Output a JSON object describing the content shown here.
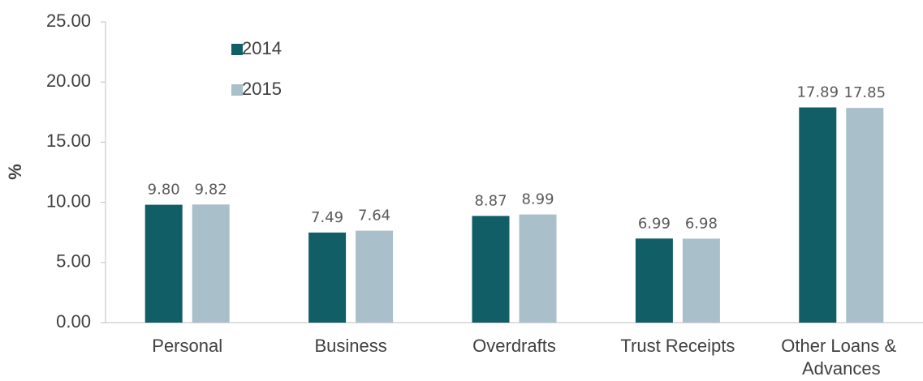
{
  "chart_data": {
    "type": "bar",
    "ylabel": "%",
    "categories": [
      "Personal",
      "Business",
      "Overdrafts",
      "Trust Receipts",
      "Other Loans & Advances"
    ],
    "series": [
      {
        "name": "2014",
        "color": "#115e67",
        "values": [
          9.8,
          7.49,
          8.87,
          6.99,
          17.89
        ],
        "value_labels": [
          "9.80",
          "7.49",
          "8.87",
          "6.99",
          "17.89"
        ]
      },
      {
        "name": "2015",
        "color": "#a9bfc9",
        "values": [
          9.82,
          7.64,
          8.99,
          6.98,
          17.85
        ],
        "value_labels": [
          "9.82",
          "7.64",
          "8.99",
          "6.98",
          "17.85"
        ]
      }
    ],
    "ylim": [
      0,
      25
    ],
    "yticks": [
      {
        "value": 0,
        "label": "0.00"
      },
      {
        "value": 5,
        "label": "5.00"
      },
      {
        "value": 10,
        "label": "10.00"
      },
      {
        "value": 15,
        "label": "15.00"
      },
      {
        "value": 20,
        "label": "20.00"
      },
      {
        "value": 25,
        "label": "25.00"
      }
    ],
    "grid": false,
    "legend": "upper left"
  }
}
